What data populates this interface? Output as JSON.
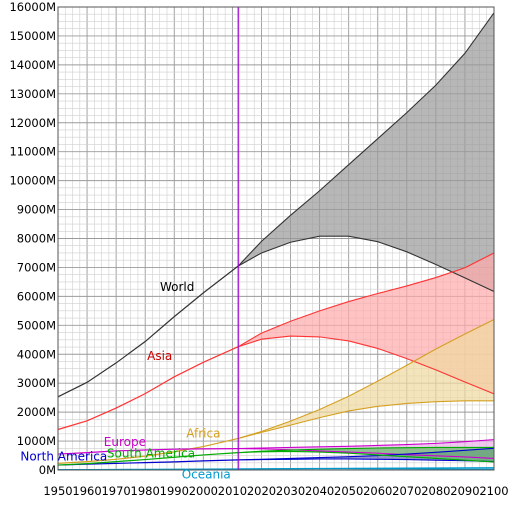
{
  "chart_data": {
    "type": "area",
    "title": "",
    "xlabel": "",
    "ylabel": "",
    "xlim": [
      1950,
      2100
    ],
    "ylim": [
      0,
      16000
    ],
    "grid": true,
    "current_year_marker": 2012,
    "x_ticks": [
      1950,
      1960,
      1970,
      1980,
      1990,
      2000,
      2010,
      2020,
      2030,
      2040,
      2050,
      2060,
      2070,
      2080,
      2090,
      2100
    ],
    "x_tick_labels": [
      "1950",
      "1960",
      "1970",
      "1980",
      "1990",
      "2000",
      "2010",
      "2020",
      "2030",
      "2040",
      "2050",
      "2060",
      "2070",
      "2080",
      "2090",
      "2100"
    ],
    "y_ticks": [
      0,
      1000,
      2000,
      3000,
      4000,
      5000,
      6000,
      7000,
      8000,
      9000,
      10000,
      11000,
      12000,
      13000,
      14000,
      15000,
      16000
    ],
    "y_tick_labels": [
      "0M",
      "1000M",
      "2000M",
      "3000M",
      "4000M",
      "5000M",
      "6000M",
      "7000M",
      "8000M",
      "9000M",
      "10000M",
      "11000M",
      "12000M",
      "13000M",
      "14000M",
      "15000M",
      "16000M"
    ],
    "x": [
      1950,
      1960,
      1970,
      1980,
      1990,
      2000,
      2012
    ],
    "historical": [
      {
        "name": "World",
        "color": "#333333",
        "values": [
          2530,
          3030,
          3700,
          4440,
          5300,
          6120,
          7050
        ]
      },
      {
        "name": "Asia",
        "color": "#ff3333",
        "values": [
          1400,
          1700,
          2140,
          2640,
          3220,
          3720,
          4260
        ]
      },
      {
        "name": "Africa",
        "color": "#d4a020",
        "values": [
          230,
          290,
          370,
          480,
          630,
          810,
          1090
        ]
      },
      {
        "name": "Europe",
        "color": "#cc00cc",
        "values": [
          550,
          600,
          660,
          690,
          720,
          730,
          740
        ]
      },
      {
        "name": "North America",
        "color": "#0000cc",
        "values": [
          170,
          200,
          230,
          255,
          280,
          315,
          350
        ]
      },
      {
        "name": "South America",
        "color": "#00aa00",
        "values": [
          170,
          220,
          290,
          360,
          440,
          520,
          600
        ]
      },
      {
        "name": "Oceania",
        "color": "#0099cc",
        "values": [
          13,
          16,
          20,
          23,
          27,
          31,
          37
        ]
      }
    ],
    "projection_x": [
      2012,
      2020,
      2030,
      2040,
      2050,
      2060,
      2070,
      2080,
      2090,
      2100
    ],
    "projections": [
      {
        "name": "World",
        "color": "#333333",
        "fill": "#999999",
        "high": [
          7050,
          7900,
          8800,
          9650,
          10550,
          11450,
          12350,
          13300,
          14400,
          15800
        ],
        "low": [
          7050,
          7500,
          7870,
          8080,
          8080,
          7890,
          7540,
          7100,
          6640,
          6170
        ]
      },
      {
        "name": "Asia",
        "color": "#ff3333",
        "fill": "#ffaaaa",
        "high": [
          4260,
          4730,
          5140,
          5500,
          5820,
          6100,
          6360,
          6650,
          6990,
          7500
        ],
        "low": [
          4260,
          4520,
          4630,
          4600,
          4460,
          4200,
          3850,
          3460,
          3040,
          2630
        ]
      },
      {
        "name": "Africa",
        "color": "#d4a020",
        "fill": "#f0d9a0",
        "high": [
          1090,
          1330,
          1690,
          2090,
          2550,
          3070,
          3620,
          4180,
          4700,
          5200
        ],
        "low": [
          1090,
          1300,
          1550,
          1810,
          2040,
          2200,
          2300,
          2360,
          2390,
          2390
        ]
      },
      {
        "name": "Europe",
        "color": "#cc00cc",
        "fill": "#e8b0e8",
        "high": [
          740,
          760,
          780,
          800,
          820,
          850,
          880,
          920,
          980,
          1050
        ],
        "low": [
          740,
          730,
          700,
          660,
          620,
          580,
          530,
          490,
          450,
          400
        ]
      },
      {
        "name": "North America",
        "color": "#0000cc",
        "fill": "#6666bb",
        "high": [
          350,
          370,
          400,
          430,
          460,
          500,
          550,
          610,
          680,
          750
        ],
        "low": [
          350,
          360,
          370,
          380,
          380,
          370,
          360,
          340,
          320,
          290
        ]
      },
      {
        "name": "South America",
        "color": "#00aa00",
        "fill": "#66bb66",
        "high": [
          600,
          650,
          690,
          720,
          740,
          760,
          770,
          780,
          780,
          780
        ],
        "low": [
          600,
          630,
          640,
          620,
          580,
          520,
          460,
          400,
          340,
          280
        ]
      },
      {
        "name": "Oceania",
        "color": "#0099cc",
        "fill": "#88ccee",
        "high": [
          37,
          42,
          48,
          53,
          58,
          63,
          68,
          73,
          78,
          82
        ],
        "low": [
          37,
          40,
          42,
          43,
          43,
          42,
          40,
          38,
          35,
          32
        ]
      }
    ],
    "annotations": [
      {
        "text": "World",
        "color": "#000000",
        "x": 1991,
        "y": 6180
      },
      {
        "text": "Asia",
        "color": "#cc0000",
        "x": 1985,
        "y": 3800
      },
      {
        "text": "Africa",
        "color": "#d4a020",
        "x": 2000,
        "y": 1130
      },
      {
        "text": "Europe",
        "color": "#cc00cc",
        "x": 1973,
        "y": 830
      },
      {
        "text": "South America",
        "color": "#00aa00",
        "x": 1982,
        "y": 430
      },
      {
        "text": "North America",
        "color": "#0000cc",
        "x": 1952,
        "y": 330
      },
      {
        "text": "Oceania",
        "color": "#0099cc",
        "x": 2001,
        "y": -290
      }
    ]
  }
}
